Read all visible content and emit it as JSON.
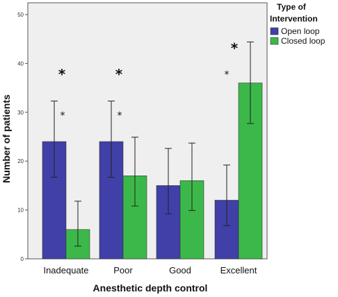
{
  "chart_data": {
    "type": "bar",
    "xlabel": "Anesthetic depth control",
    "ylabel": "Number of patients",
    "ylim": [
      0,
      52
    ],
    "yticks": [
      0,
      10,
      20,
      30,
      40,
      50
    ],
    "categories": [
      "Inadequate",
      "Poor",
      "Good",
      "Excellent"
    ],
    "series": [
      {
        "name": "Open loop",
        "color": "#4040a8",
        "values": [
          24,
          24,
          15,
          12
        ],
        "error_low": [
          16.7,
          16.7,
          9.2,
          6.8
        ],
        "error_high": [
          32.3,
          32.3,
          22.6,
          19.2
        ]
      },
      {
        "name": "Closed loop",
        "color": "#3cb84a",
        "values": [
          6,
          17,
          16,
          36
        ],
        "error_low": [
          2.6,
          10.8,
          9.9,
          27.7
        ],
        "error_high": [
          11.8,
          24.9,
          23.7,
          44.4
        ]
      }
    ],
    "legend": {
      "title": "Type of Intervention",
      "position": "top-right outside"
    },
    "annotations": [
      {
        "category": "Inadequate",
        "text": "*",
        "emphasis": "bold",
        "y": 38.5
      },
      {
        "category": "Inadequate",
        "text": "*",
        "emphasis": "small",
        "y": 30.4
      },
      {
        "category": "Poor",
        "text": "*",
        "emphasis": "bold",
        "y": 38.5
      },
      {
        "category": "Poor",
        "text": "*",
        "emphasis": "small",
        "y": 30.4
      },
      {
        "category": "Excellent",
        "text": "*",
        "emphasis": "bold",
        "y": 43.8
      },
      {
        "category": "Excellent",
        "text": "*",
        "emphasis": "small",
        "y": 38.8
      }
    ],
    "grid": false,
    "plot_background": "#efefef"
  }
}
